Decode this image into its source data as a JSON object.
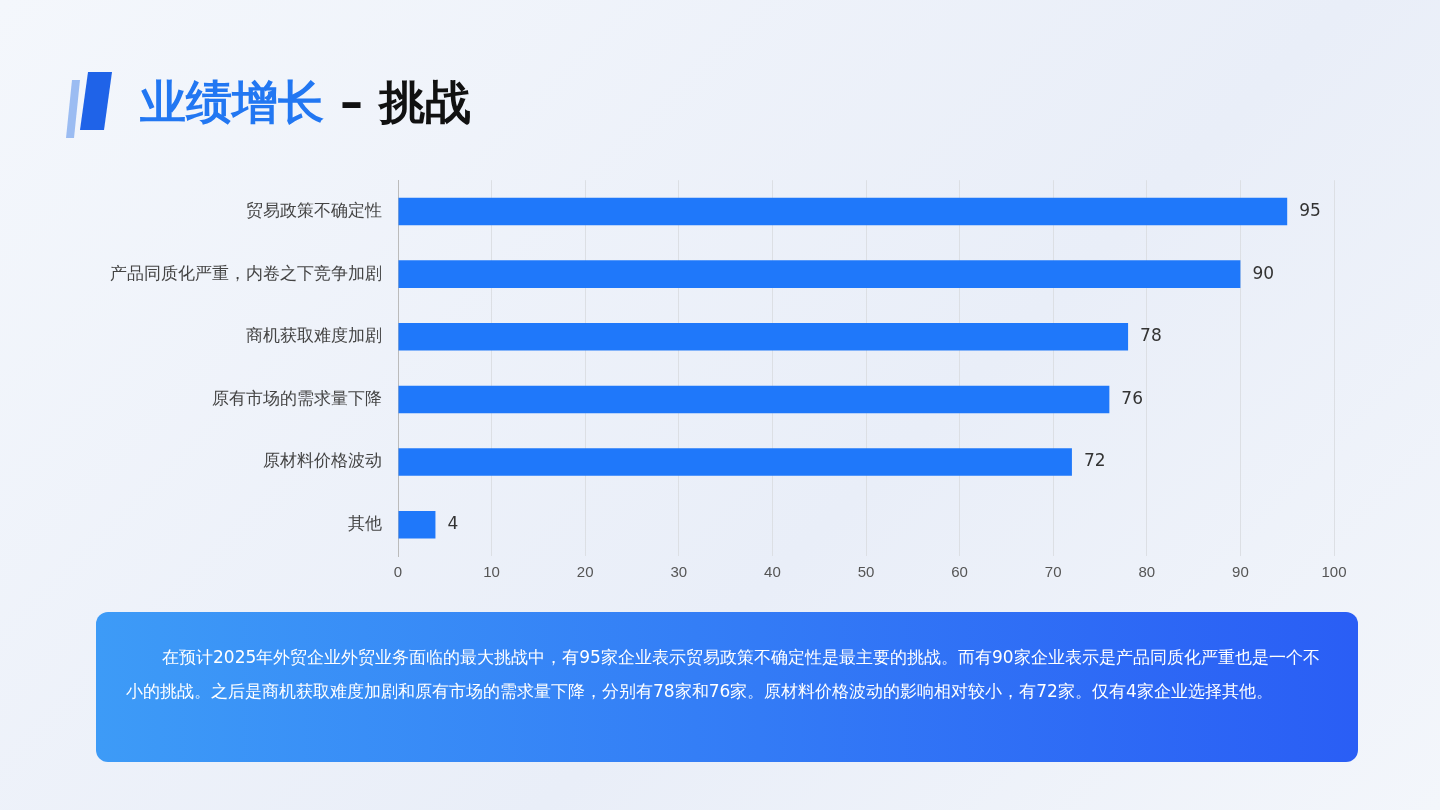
{
  "chart_data": {
    "type": "bar",
    "orientation": "horizontal",
    "title": "业绩增长 – 挑战",
    "categories": [
      "贸易政策不确定性",
      "产品同质化严重，内卷之下竞争加剧",
      "商机获取难度加剧",
      "原有市场的需求量下降",
      "原材料价格波动",
      "其他"
    ],
    "values": [
      95,
      90,
      78,
      76,
      72,
      4
    ],
    "color": "#1f78fa",
    "xlim": [
      0,
      100
    ],
    "xticks": [
      0,
      10,
      20,
      30,
      40,
      50,
      60,
      70,
      80,
      90,
      100
    ],
    "grid": "x",
    "data_labels": true,
    "legend": false,
    "annotations": [
      "在预计2025年外贸企业外贸业务面临的最大挑战中，有95家企业表示贸易政策不确定性是最主要的挑战。而有90家企业表示是产品同质化严重也是一个不小的挑战。之后是商机获取难度加剧和原有市场的需求量下降，分别有78家和76家。原材料价格波动的影响相对较小，有72家。仅有4家企业选择其他。"
    ]
  }
}
